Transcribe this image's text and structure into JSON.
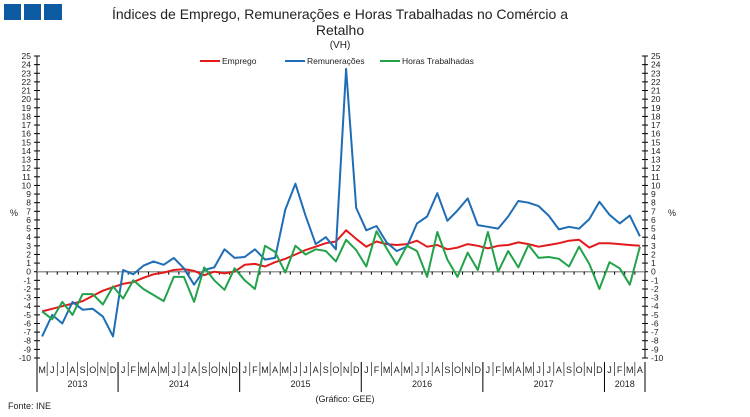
{
  "logo": {
    "name": "ine-logo-squares",
    "color": "#0b5aa2"
  },
  "chart_data": {
    "type": "line",
    "title": "Índices de Emprego, Remunerações e Horas Trabalhadas no Comércio a Retalho",
    "subtitle": "(VH)",
    "ylabel": "%",
    "ylabel_right": "%",
    "ylim": [
      -10,
      25
    ],
    "yticks": [
      -10,
      -9,
      -8,
      -7,
      -6,
      -5,
      -4,
      -3,
      -2,
      -1,
      0,
      1,
      2,
      3,
      4,
      5,
      6,
      7,
      8,
      9,
      10,
      11,
      12,
      13,
      14,
      15,
      16,
      17,
      18,
      19,
      20,
      21,
      22,
      23,
      24,
      25
    ],
    "grid": false,
    "legend_position": "top",
    "month_labels": [
      "M",
      "J",
      "J",
      "A",
      "S",
      "O",
      "N",
      "D",
      "J",
      "F",
      "M",
      "A",
      "M",
      "J",
      "J",
      "A",
      "S",
      "O",
      "N",
      "D",
      "J",
      "F",
      "M",
      "A",
      "M",
      "J",
      "J",
      "A",
      "S",
      "O",
      "N",
      "D",
      "J",
      "F",
      "M",
      "A",
      "M",
      "J",
      "J",
      "A",
      "S",
      "O",
      "N",
      "D",
      "J",
      "F",
      "M",
      "A",
      "M",
      "J",
      "J",
      "A",
      "S",
      "O",
      "N",
      "D",
      "J",
      "F",
      "M",
      "A"
    ],
    "years": [
      {
        "label": "2013",
        "months": 8
      },
      {
        "label": "2014",
        "months": 12
      },
      {
        "label": "2015",
        "months": 12
      },
      {
        "label": "2016",
        "months": 12
      },
      {
        "label": "2017",
        "months": 12
      },
      {
        "label": "2018",
        "months": 4
      }
    ],
    "series": [
      {
        "name": "Emprego",
        "color": "#e31a1c",
        "values": [
          -4.6,
          -4.3,
          -4.0,
          -3.7,
          -3.4,
          -2.8,
          -2.2,
          -1.8,
          -1.4,
          -1.2,
          -0.7,
          -0.3,
          -0.1,
          0.2,
          0.3,
          0.1,
          -0.4,
          0.0,
          -0.2,
          0.0,
          0.8,
          0.9,
          0.6,
          1.1,
          1.5,
          2.0,
          2.5,
          2.9,
          3.3,
          3.5,
          4.8,
          3.8,
          2.9,
          3.5,
          3.2,
          3.1,
          3.2,
          3.6,
          2.9,
          3.1,
          2.6,
          2.8,
          3.2,
          3.0,
          2.7,
          3.0,
          3.1,
          3.4,
          3.2,
          2.9,
          3.1,
          3.3,
          3.6,
          3.7,
          2.8,
          3.3,
          3.3,
          3.2,
          3.1,
          3.0
        ]
      },
      {
        "name": "Remunerações",
        "color": "#1f6db5",
        "values": [
          -7.5,
          -5.0,
          -6.0,
          -3.5,
          -4.4,
          -4.3,
          -5.2,
          -7.5,
          0.2,
          -0.3,
          0.7,
          1.2,
          0.8,
          1.6,
          0.4,
          -1.5,
          0.2,
          0.5,
          2.6,
          1.6,
          1.7,
          2.6,
          1.4,
          1.6,
          7.2,
          10.2,
          6.5,
          3.2,
          4.0,
          2.6,
          23.5,
          7.4,
          4.8,
          5.3,
          3.4,
          2.4,
          2.9,
          5.6,
          6.4,
          9.1,
          5.9,
          7.1,
          8.5,
          5.4,
          5.2,
          5.0,
          6.4,
          8.2,
          8.0,
          7.6,
          6.5,
          4.9,
          5.2,
          5.0,
          6.1,
          8.1,
          6.6,
          5.6,
          6.5,
          4.1
        ]
      },
      {
        "name": "Horas Trabalhadas",
        "color": "#22a24a",
        "values": [
          -4.6,
          -5.5,
          -3.5,
          -5.0,
          -2.6,
          -2.6,
          -3.8,
          -1.7,
          -3.1,
          -1.0,
          -2.0,
          -2.7,
          -3.4,
          -0.6,
          -0.6,
          -3.5,
          0.5,
          -1.0,
          -2.1,
          0.4,
          -1.0,
          -2.0,
          3.0,
          2.3,
          -0.1,
          3.0,
          2.0,
          2.6,
          2.4,
          1.2,
          3.7,
          2.5,
          0.6,
          4.7,
          2.7,
          0.8,
          3.0,
          2.4,
          -0.6,
          4.6,
          1.4,
          -0.6,
          2.2,
          0.2,
          4.6,
          0.0,
          2.4,
          0.5,
          3.1,
          1.6,
          1.7,
          1.5,
          0.6,
          2.9,
          0.9,
          -2.0,
          1.1,
          0.4,
          -1.5,
          2.9
        ]
      }
    ]
  },
  "footer": {
    "source": "Fonte: INE",
    "credit": "(Gráfico: GEE)"
  }
}
